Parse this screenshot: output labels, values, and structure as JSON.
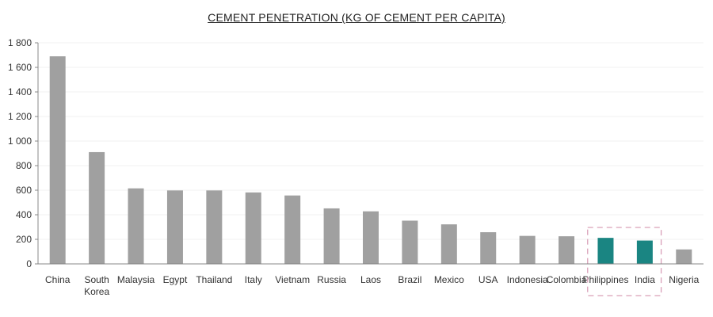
{
  "chart_data": {
    "type": "bar",
    "title": "CEMENT PENETRATION (KG OF CEMENT PER CAPITA)",
    "xlabel": "",
    "ylabel": "",
    "ylim": [
      0,
      1800
    ],
    "yticks": [
      0,
      200,
      400,
      600,
      800,
      1000,
      1200,
      1400,
      1600,
      1800
    ],
    "ytick_labels": [
      "0",
      "200",
      "400",
      "600",
      "800",
      "1 000",
      "1 200",
      "1 400",
      "1 600",
      "1 800"
    ],
    "grid": true,
    "categories": [
      [
        "China"
      ],
      [
        "South",
        "Korea"
      ],
      [
        "Malaysia"
      ],
      [
        "Egypt"
      ],
      [
        "Thailand"
      ],
      [
        "Italy"
      ],
      [
        "Vietnam"
      ],
      [
        "Russia"
      ],
      [
        "Laos"
      ],
      [
        "Brazil"
      ],
      [
        "Mexico"
      ],
      [
        "USA"
      ],
      [
        "Indonesia"
      ],
      [
        "Colombia"
      ],
      [
        "Philippines"
      ],
      [
        "India"
      ],
      [
        "Nigeria"
      ]
    ],
    "values": [
      1690,
      910,
      615,
      598,
      598,
      582,
      557,
      452,
      428,
      352,
      322,
      258,
      228,
      225,
      212,
      190,
      118
    ],
    "highlighted": [
      false,
      false,
      false,
      false,
      false,
      false,
      false,
      false,
      false,
      false,
      false,
      false,
      false,
      false,
      true,
      true,
      false
    ],
    "colors": {
      "default_bar": "#a0a0a0",
      "highlight_bar": "#1a8582",
      "highlight_box": "#d9a0b8",
      "gridline": "#f0f0f0",
      "axis": "#888888"
    }
  }
}
